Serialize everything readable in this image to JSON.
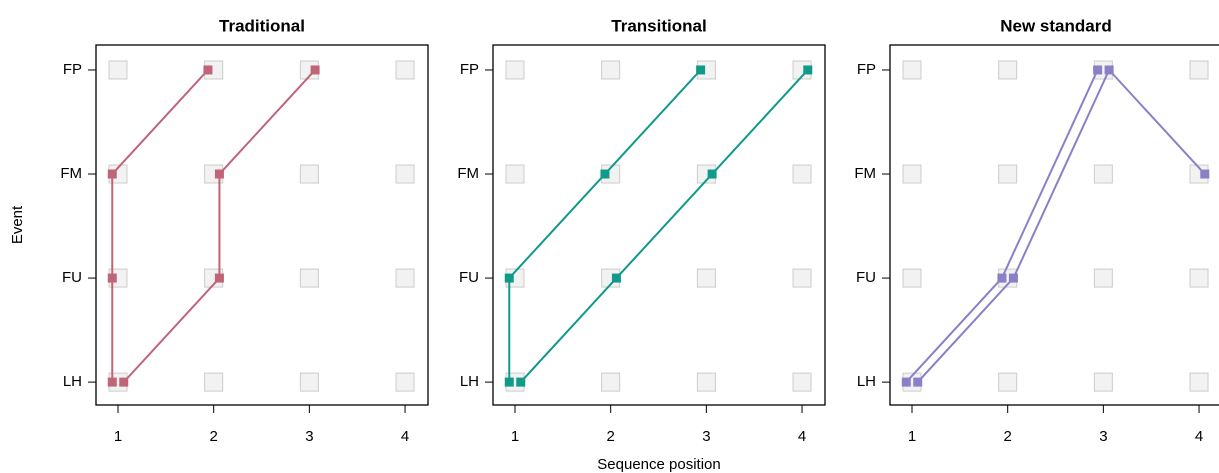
{
  "chart_data": [
    {
      "type": "line",
      "title": "Traditional",
      "ylabel": "Event",
      "xlim": [
        0.77,
        4.24
      ],
      "ylim": [
        0.78,
        4.24
      ],
      "xticks": [
        1,
        2,
        3,
        4
      ],
      "yticks": [
        {
          "value": 1,
          "label": "LH"
        },
        {
          "value": 2,
          "label": "FU"
        },
        {
          "value": 3,
          "label": "FM"
        },
        {
          "value": 4,
          "label": "FP"
        }
      ],
      "series": [
        {
          "color": "#c06478",
          "x": [
            0.94,
            0.94,
            0.94,
            1.94
          ],
          "values": [
            1,
            2,
            3,
            4
          ]
        },
        {
          "color": "#c06478",
          "x": [
            1.06,
            2.06,
            2.06,
            3.06
          ],
          "values": [
            1,
            2,
            3,
            4
          ]
        }
      ]
    },
    {
      "type": "line",
      "title": "Transitional",
      "xlabel": "Sequence position",
      "xlim": [
        0.77,
        4.24
      ],
      "ylim": [
        0.78,
        4.24
      ],
      "xticks": [
        1,
        2,
        3,
        4
      ],
      "yticks": [
        {
          "value": 1,
          "label": "LH"
        },
        {
          "value": 2,
          "label": "FU"
        },
        {
          "value": 3,
          "label": "FM"
        },
        {
          "value": 4,
          "label": "FP"
        }
      ],
      "series": [
        {
          "color": "#109a8a",
          "x": [
            0.94,
            0.94,
            1.94,
            2.94
          ],
          "values": [
            1,
            2,
            3,
            4
          ]
        },
        {
          "color": "#109a8a",
          "x": [
            1.06,
            2.06,
            3.06,
            4.06
          ],
          "values": [
            1,
            2,
            3,
            4
          ]
        }
      ]
    },
    {
      "type": "line",
      "title": "New standard",
      "xlim": [
        0.77,
        4.24
      ],
      "ylim": [
        0.78,
        4.24
      ],
      "xticks": [
        1,
        2,
        3,
        4
      ],
      "yticks": [
        {
          "value": 1,
          "label": "LH"
        },
        {
          "value": 2,
          "label": "FU"
        },
        {
          "value": 3,
          "label": "FM"
        },
        {
          "value": 4,
          "label": "FP"
        }
      ],
      "series": [
        {
          "color": "#8b7fc8",
          "x": [
            0.94,
            1.94,
            2.94
          ],
          "values": [
            1,
            2,
            4
          ]
        },
        {
          "color": "#8b7fc8",
          "x": [
            1.06,
            2.06,
            3.06,
            4.06
          ],
          "values": [
            1,
            2,
            4,
            3
          ]
        }
      ]
    }
  ]
}
